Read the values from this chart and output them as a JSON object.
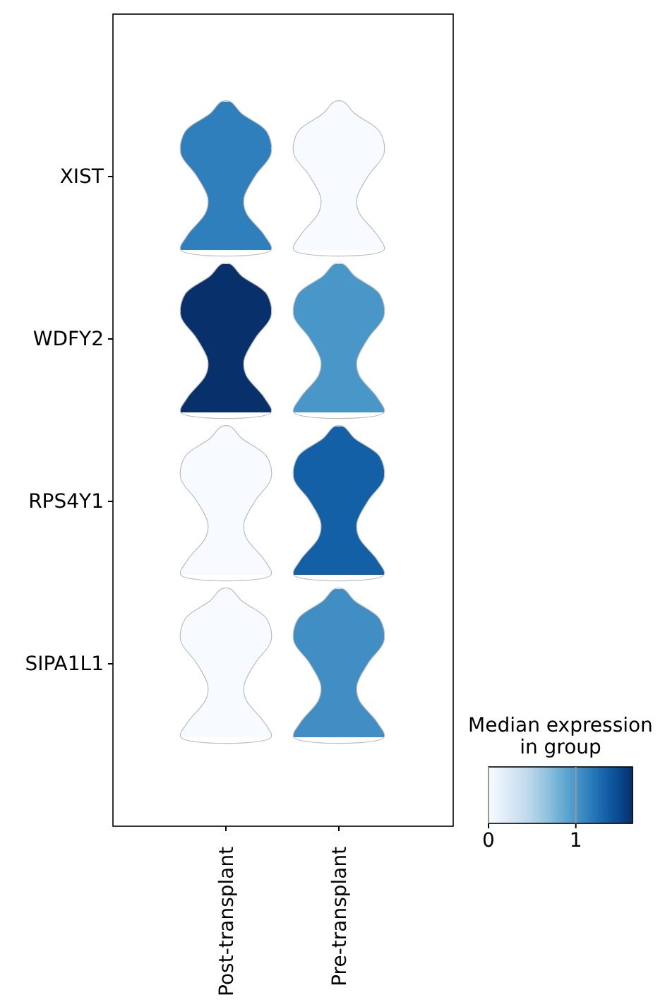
{
  "chart_data": {
    "type": "heatmap",
    "categories": [
      "Post-transplant",
      "Pre-transplant"
    ],
    "y_categories": [
      "XIST",
      "WDFY2",
      "RPS4Y1",
      "SIPA1L1"
    ],
    "cells": [
      [
        1.15,
        0.0
      ],
      [
        1.65,
        1.0
      ],
      [
        0.0,
        1.35
      ],
      [
        0.0,
        1.05
      ]
    ],
    "clabel": "Median expression\nin group",
    "clim": [
      0,
      1.65
    ],
    "cticks": [
      0,
      1
    ]
  }
}
